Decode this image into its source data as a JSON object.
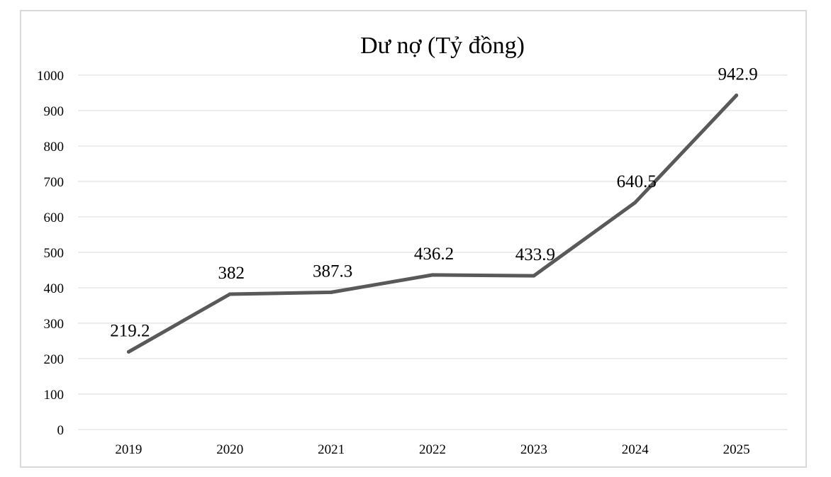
{
  "chart_data": {
    "type": "line",
    "title": "Dư nợ (Tỷ đồng)",
    "xlabel": "",
    "ylabel": "",
    "categories": [
      "2019",
      "2020",
      "2021",
      "2022",
      "2023",
      "2024",
      "2025"
    ],
    "series": [
      {
        "values": [
          219.2,
          382,
          387.3,
          436.2,
          433.9,
          640.5,
          942.9
        ],
        "color": "#595959"
      }
    ],
    "data_labels": [
      "219.2",
      "382",
      "387.3",
      "436.2",
      "433.9",
      "640.5",
      "942.9"
    ],
    "ylim": [
      0,
      1000
    ],
    "yticks": [
      "0",
      "100",
      "200",
      "300",
      "400",
      "500",
      "600",
      "700",
      "800",
      "900",
      "1000"
    ],
    "grid": true,
    "legend": "none"
  }
}
